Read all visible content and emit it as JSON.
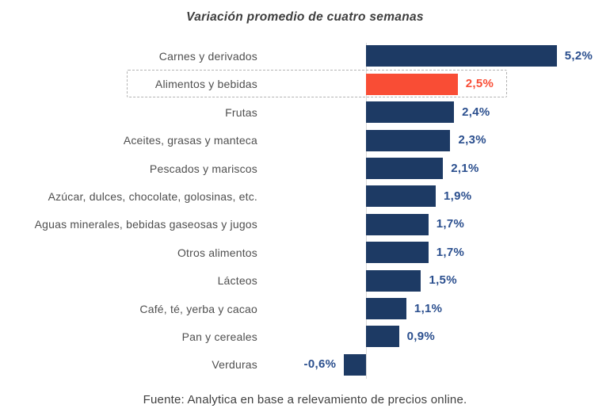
{
  "chart": {
    "title": "Variación promedio de cuatro semanas",
    "source": "Fuente: Analytica en base a relevamiento de precios online."
  },
  "chart_data": {
    "type": "bar",
    "orientation": "horizontal",
    "title": "Variación promedio de cuatro semanas",
    "xlabel": "",
    "ylabel": "",
    "xlim": [
      -0.6,
      5.2
    ],
    "grid": false,
    "legend": false,
    "categories": [
      "Carnes y derivados",
      "Alimentos y bebidas",
      "Frutas",
      "Aceites, grasas y manteca",
      "Pescados y mariscos",
      "Azúcar, dulces, chocolate, golosinas, etc.",
      "Aguas minerales, bebidas gaseosas y jugos",
      "Otros alimentos",
      "Lácteos",
      "Café, té, yerba y cacao",
      "Pan y cereales",
      "Verduras"
    ],
    "values": [
      5.2,
      2.5,
      2.4,
      2.3,
      2.1,
      1.9,
      1.7,
      1.7,
      1.5,
      1.1,
      0.9,
      -0.6
    ],
    "value_labels": [
      "5,2%",
      "2,5%",
      "2,4%",
      "2,3%",
      "2,1%",
      "1,9%",
      "1,7%",
      "1,7%",
      "1,5%",
      "1,1%",
      "0,9%",
      "-0,6%"
    ],
    "highlighted_index": 1,
    "annotations": [
      "Alimentos y bebidas row outlined with dashed box"
    ],
    "colors": {
      "bar": "#1d3a64",
      "highlight_bar": "#f94d35",
      "value_text": "#2b4f8e",
      "highlight_value_text": "#f94d35",
      "category_text": "#4f4f4f",
      "title_text": "#3d3d3d",
      "axis_line": "#d9d9d9",
      "highlight_box_border": "#b3b3b3",
      "background": "#ffffff"
    }
  }
}
